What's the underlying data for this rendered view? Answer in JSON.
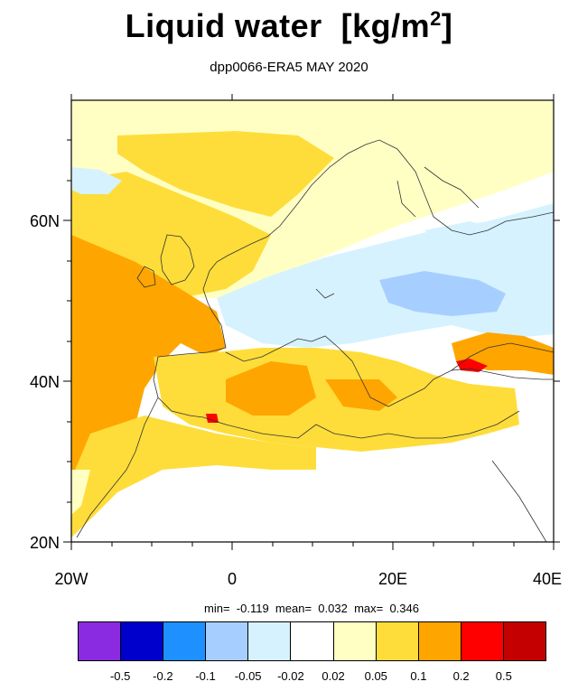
{
  "title": "Liquid water",
  "title_unit_base": "[kg/m",
  "title_unit_sup": "2",
  "title_unit_end": "]",
  "subtitle": "dpp0066-ERA5 MAY 2020",
  "axes": {
    "y_labels": [
      "60N",
      "40N",
      "20N"
    ],
    "x_labels": [
      "20W",
      "0",
      "20E",
      "40E"
    ]
  },
  "stats": {
    "min_label": "min=",
    "min_value": "-0.119",
    "mean_label": "mean=",
    "mean_value": "0.032",
    "max_label": "max=",
    "max_value": "0.346"
  },
  "colorbar": {
    "colors": [
      "#8a2be2",
      "#0000cd",
      "#1e90ff",
      "#a6cfff",
      "#d6f2ff",
      "#ffffff",
      "#ffffc4",
      "#fedd3a",
      "#ffa500",
      "#ff0000",
      "#c40000"
    ],
    "labels": [
      "-0.5",
      "-0.2",
      "-0.1",
      "-0.05",
      "-0.02",
      "0.02",
      "0.05",
      "0.1",
      "0.2",
      "0.5"
    ]
  }
}
